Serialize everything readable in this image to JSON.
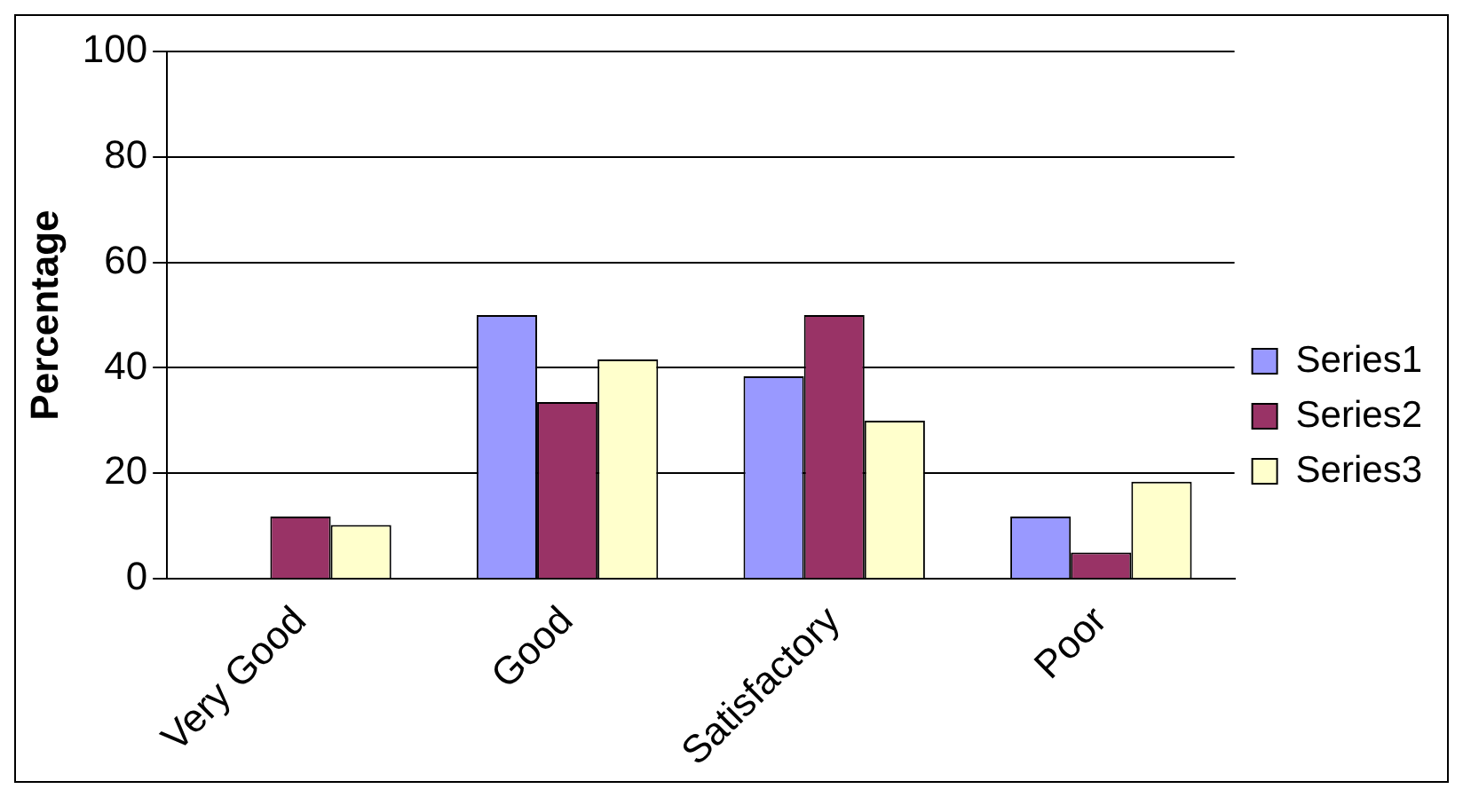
{
  "chart_data": {
    "type": "bar",
    "ylabel": "Percentage",
    "categories": [
      "Very Good",
      "Good",
      "Satisfactory",
      "Poor"
    ],
    "series": [
      {
        "name": "Series1",
        "color": "#9999ff",
        "values": [
          0,
          50,
          38.4,
          11.8
        ]
      },
      {
        "name": "Series2",
        "color": "#993366",
        "values": [
          11.8,
          33.5,
          50,
          5
        ]
      },
      {
        "name": "Series3",
        "color": "#ffffcc",
        "values": [
          10.2,
          41.6,
          30,
          18.4
        ]
      }
    ],
    "ylim": [
      0,
      100
    ],
    "yticks": [
      0,
      20,
      40,
      60,
      80,
      100
    ],
    "grid": "y",
    "legend": "right"
  }
}
